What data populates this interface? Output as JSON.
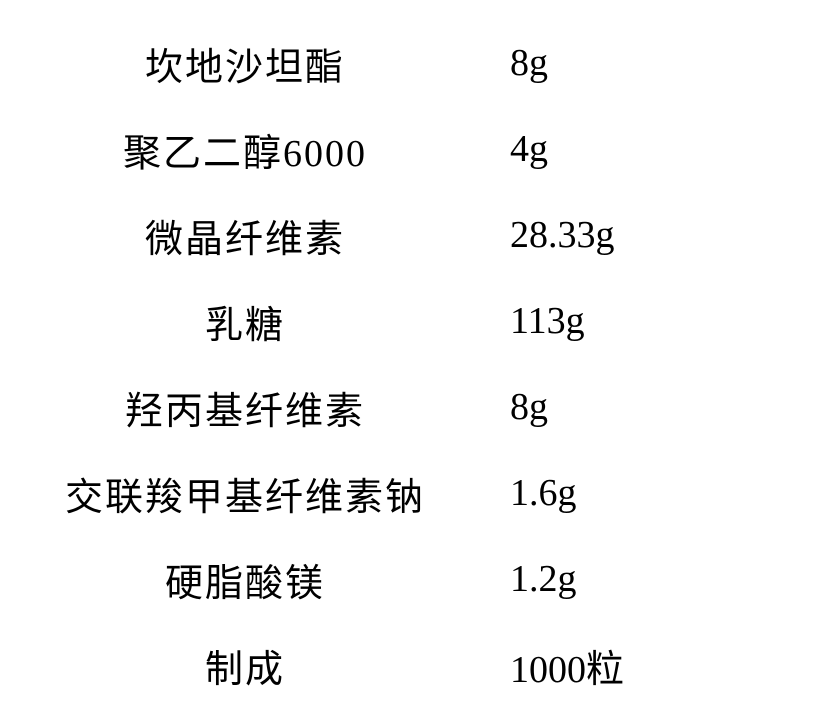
{
  "table": {
    "font_size": 38,
    "text_color": "#000000",
    "background_color": "#ffffff",
    "rows": [
      {
        "ingredient": "坎地沙坦酯",
        "amount": "8g"
      },
      {
        "ingredient": "聚乙二醇6000",
        "amount": "4g"
      },
      {
        "ingredient": "微晶纤维素",
        "amount": "28.33g"
      },
      {
        "ingredient": "乳糖",
        "amount": "113g"
      },
      {
        "ingredient": "羟丙基纤维素",
        "amount": "8g"
      },
      {
        "ingredient": "交联羧甲基纤维素钠",
        "amount": "1.6g"
      },
      {
        "ingredient": "硬脂酸镁",
        "amount": "1.2g"
      },
      {
        "ingredient": "制成",
        "amount": "1000粒"
      }
    ]
  }
}
